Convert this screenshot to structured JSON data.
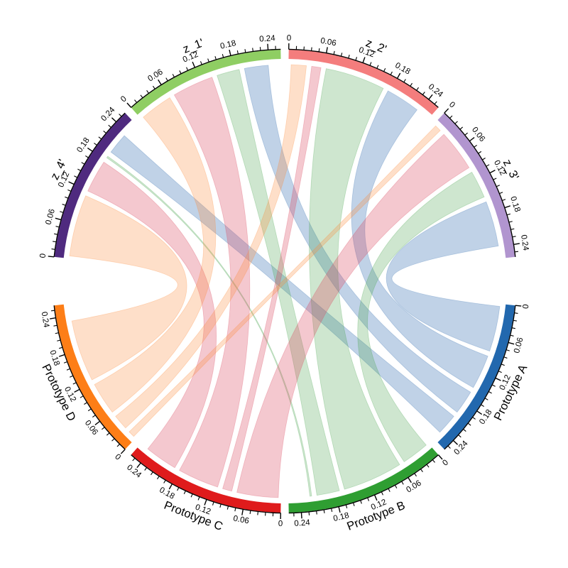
{
  "figure": {
    "background": "#ffffff"
  },
  "chart_data": {
    "type": "chord",
    "title": "",
    "description": "Chord diagram linking prototypes A-D to latent dimensions z_1' to z_4'",
    "axis": {
      "tick_labels": [
        "0",
        "0.06",
        "0.12",
        "0.18",
        "0.24"
      ],
      "tick_values": [
        0,
        0.06,
        0.12,
        0.18,
        0.24
      ],
      "minor_tick_step": 0.012,
      "sector_value_span": 0.26,
      "axis_color": "#000000"
    },
    "sectors": {
      "z1": {
        "label": "z_1'",
        "color": "#8fce63"
      },
      "z2": {
        "label": "z_2'",
        "color": "#f47d7d"
      },
      "z3": {
        "label": "z_3'",
        "color": "#b195cf"
      },
      "z4": {
        "label": "z_4'",
        "color": "#4f2a7f"
      },
      "A": {
        "label": "Prototype A",
        "color": "#2268ae",
        "ribbon_color": "#3b74b4",
        "ribbon_opacity": 0.32
      },
      "B": {
        "label": "Prototype B",
        "color": "#2f9e32",
        "ribbon_color": "#4aa44e",
        "ribbon_opacity": 0.27
      },
      "C": {
        "label": "Prototype C",
        "color": "#df1b1c",
        "ribbon_color": "#dc4a5f",
        "ribbon_opacity": 0.3
      },
      "D": {
        "label": "Prototype D",
        "color": "#fd7e17",
        "ribbon_color": "#fb8c3c",
        "ribbon_opacity": 0.28
      }
    },
    "arrangement": {
      "top": [
        "z4",
        "z1",
        "z2",
        "z3"
      ],
      "bottom": [
        "A",
        "B",
        "C",
        "D"
      ],
      "z_side_stack": [
        "D",
        "C",
        "B",
        "A"
      ],
      "prototype_side_stack": [
        "z3",
        "z2",
        "z1",
        "z4"
      ]
    },
    "flows": [
      {
        "from": "A",
        "to": "z3",
        "value": 0.087
      },
      {
        "from": "A",
        "to": "z2",
        "value": 0.068
      },
      {
        "from": "A",
        "to": "z1",
        "value": 0.05
      },
      {
        "from": "A",
        "to": "z4",
        "value": 0.045
      },
      {
        "from": "B",
        "to": "z3",
        "value": 0.056
      },
      {
        "from": "B",
        "to": "z2",
        "value": 0.112
      },
      {
        "from": "B",
        "to": "z1",
        "value": 0.048
      },
      {
        "from": "B",
        "to": "z4",
        "value": 0.012
      },
      {
        "from": "C",
        "to": "z3",
        "value": 0.08
      },
      {
        "from": "C",
        "to": "z2",
        "value": 0.025
      },
      {
        "from": "C",
        "to": "z1",
        "value": 0.08
      },
      {
        "from": "C",
        "to": "z4",
        "value": 0.065
      },
      {
        "from": "D",
        "to": "z3",
        "value": 0.02
      },
      {
        "from": "D",
        "to": "z2",
        "value": 0.035
      },
      {
        "from": "D",
        "to": "z1",
        "value": 0.065
      },
      {
        "from": "D",
        "to": "z4",
        "value": 0.115
      }
    ],
    "legend": null,
    "grid": false
  }
}
